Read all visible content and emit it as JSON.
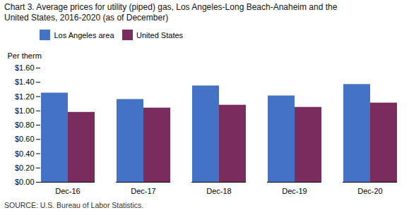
{
  "chart_data": {
    "type": "bar",
    "title": "Chart 3. Average prices for utility (piped) gas, Los Angeles-Long Beach-Anaheim and the\nUnited States, 2016-2020  (as of December)",
    "ylabel": "Per therm",
    "source": "SOURCE: U.S. Bureau of Labor Statistics.",
    "categories": [
      "Dec-16",
      "Dec-17",
      "Dec-18",
      "Dec-19",
      "Dec-20"
    ],
    "series": [
      {
        "name": "Los Angeles area",
        "color": "#4472C4",
        "values": [
          1.25,
          1.16,
          1.35,
          1.21,
          1.37
        ]
      },
      {
        "name": "United States",
        "color": "#7B2C5E",
        "values": [
          0.98,
          1.04,
          1.08,
          1.05,
          1.11
        ]
      }
    ],
    "ylim": [
      0.0,
      1.6
    ],
    "yticks": [
      {
        "value": 0.0,
        "label": "$0.00"
      },
      {
        "value": 0.2,
        "label": "$0.20"
      },
      {
        "value": 0.4,
        "label": "$0.40"
      },
      {
        "value": 0.6,
        "label": "$0.60"
      },
      {
        "value": 0.8,
        "label": "$0.80"
      },
      {
        "value": 1.0,
        "label": "$1.00"
      },
      {
        "value": 1.2,
        "label": "$1.20"
      },
      {
        "value": 1.4,
        "label": "$1.40"
      },
      {
        "value": 1.6,
        "label": "$1.60"
      }
    ],
    "grid": false,
    "legend": "upper left"
  }
}
